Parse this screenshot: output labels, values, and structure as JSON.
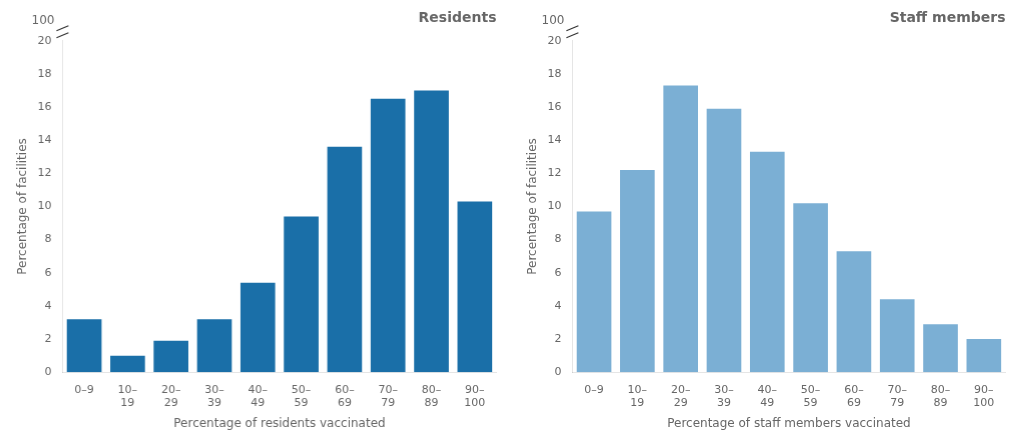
{
  "chart_data": [
    {
      "type": "bar",
      "title": "Residents",
      "xlabel": "Percentage of residents vaccinated",
      "ylabel": "Percentage of facilities",
      "annotations": [
        "100"
      ],
      "categories": [
        "0–9",
        "10–\n19",
        "20–\n29",
        "30–\n39",
        "40–\n49",
        "50–\n59",
        "60–\n69",
        "70–\n79",
        "80–\n89",
        "90–\n100"
      ],
      "values": [
        3.2,
        1.0,
        1.9,
        3.2,
        5.4,
        9.4,
        13.6,
        16.5,
        17.0,
        10.3
      ],
      "color": "#1a6fa8",
      "ylim": [
        0,
        20
      ],
      "yticks": [
        0,
        2,
        4,
        6,
        8,
        10,
        12,
        14,
        16,
        18,
        20
      ],
      "grid": false
    },
    {
      "type": "bar",
      "title": "Staff members",
      "xlabel": "Percentage of staff members vaccinated",
      "ylabel": "Percentage of facilities",
      "annotations": [
        "100"
      ],
      "categories": [
        "0–9",
        "10–\n19",
        "20–\n29",
        "30–\n39",
        "40–\n49",
        "50–\n59",
        "60–\n69",
        "70–\n79",
        "80–\n89",
        "90–\n100"
      ],
      "values": [
        9.7,
        12.2,
        17.3,
        15.9,
        13.3,
        10.2,
        7.3,
        4.4,
        2.9,
        2.0
      ],
      "color": "#7bafd4",
      "ylim": [
        0,
        20
      ],
      "yticks": [
        0,
        2,
        4,
        6,
        8,
        10,
        12,
        14,
        16,
        18,
        20
      ],
      "grid": false
    }
  ]
}
